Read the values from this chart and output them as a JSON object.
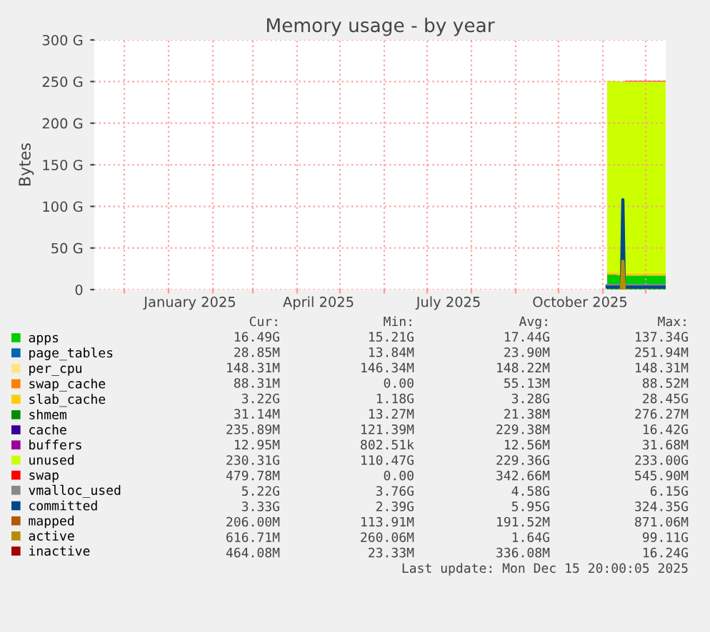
{
  "chart_data": {
    "type": "area",
    "title": "Memory usage - by year",
    "ylabel": "Bytes",
    "stacked": true,
    "grid": true,
    "legend": "bottom",
    "xlim": [
      "2024-11-10",
      "2025-12-15"
    ],
    "xticks": [
      {
        "value": "2024-12-01",
        "label": null
      },
      {
        "value": "2025-01-01",
        "label": null
      },
      {
        "value": "2025-01-16",
        "label": "January 2025"
      },
      {
        "value": "2025-02-01",
        "label": null
      },
      {
        "value": "2025-03-01",
        "label": null
      },
      {
        "value": "2025-04-01",
        "label": null
      },
      {
        "value": "2025-04-16",
        "label": "April 2025"
      },
      {
        "value": "2025-05-01",
        "label": null
      },
      {
        "value": "2025-06-01",
        "label": null
      },
      {
        "value": "2025-07-01",
        "label": null
      },
      {
        "value": "2025-07-16",
        "label": "July 2025"
      },
      {
        "value": "2025-08-01",
        "label": null
      },
      {
        "value": "2025-09-01",
        "label": null
      },
      {
        "value": "2025-10-01",
        "label": null
      },
      {
        "value": "2025-10-16",
        "label": "October 2025"
      },
      {
        "value": "2025-11-01",
        "label": null
      },
      {
        "value": "2025-12-01",
        "label": null
      }
    ],
    "ylim": [
      0,
      300
    ],
    "yticks": [
      0,
      {
        "value": 50,
        "label": "50 G"
      },
      {
        "value": 100,
        "label": "100 G"
      },
      {
        "value": 150,
        "label": "150 G"
      },
      {
        "value": 200,
        "label": "200 G"
      },
      {
        "value": 250,
        "label": "250 G"
      },
      {
        "value": 300,
        "label": "300 G"
      }
    ],
    "x": [
      "2025-11-04",
      "2025-11-10",
      "2025-11-14",
      "2025-11-15",
      "2025-11-16",
      "2025-11-17",
      "2025-11-25",
      "2025-12-05",
      "2025-12-15"
    ],
    "series": [
      {
        "name": "apps",
        "color": "#00cc00",
        "values": [
          18,
          18,
          17,
          17,
          17,
          17,
          17,
          17,
          17
        ]
      },
      {
        "name": "page_tables",
        "color": "#0066b3",
        "values": [
          null,
          null,
          null,
          null,
          null,
          null,
          null,
          null,
          null
        ]
      },
      {
        "name": "per_cpu",
        "color": "#ffe680",
        "values": [
          null,
          null,
          null,
          null,
          null,
          null,
          null,
          null,
          null
        ]
      },
      {
        "name": "swap_cache",
        "color": "#ff8000",
        "values": [
          null,
          null,
          null,
          null,
          null,
          null,
          null,
          null,
          null
        ]
      },
      {
        "name": "slab_cache",
        "color": "#ffcc00",
        "values": [
          3,
          3,
          3,
          3,
          3,
          3,
          3,
          3,
          3
        ]
      },
      {
        "name": "shmem",
        "color": "#008f00",
        "values": [
          null,
          null,
          null,
          null,
          null,
          null,
          null,
          null,
          null
        ]
      },
      {
        "name": "cache",
        "color": "#330099",
        "values": [
          null,
          null,
          null,
          null,
          null,
          null,
          null,
          null,
          null
        ]
      },
      {
        "name": "buffers",
        "color": "#990099",
        "values": [
          null,
          null,
          null,
          null,
          null,
          null,
          null,
          null,
          null
        ]
      },
      {
        "name": "unused",
        "color": "#ccff00",
        "values": [
          230,
          230,
          230,
          230,
          230,
          230,
          230,
          230,
          230
        ]
      },
      {
        "name": "swap",
        "color": "#ff0000",
        "values": [
          0,
          0,
          0,
          0,
          0,
          1,
          1,
          1,
          1
        ]
      },
      {
        "name": "vmalloc_used",
        "type": "line",
        "color": "#888888",
        "values": [
          5,
          5,
          5,
          5,
          5,
          5,
          5,
          5,
          5
        ]
      },
      {
        "name": "committed",
        "type": "line",
        "color": "#00488c",
        "values": [
          3,
          3,
          3,
          108,
          3,
          3,
          3,
          3,
          3
        ]
      },
      {
        "name": "mapped",
        "type": "line",
        "color": "#b35a00",
        "values": [
          null,
          null,
          null,
          null,
          null,
          null,
          null,
          null,
          null
        ]
      },
      {
        "name": "active",
        "type": "line",
        "color": "#b38f00",
        "values": [
          null,
          null,
          1,
          34,
          1,
          null,
          null,
          null,
          null
        ]
      },
      {
        "name": "inactive",
        "type": "line",
        "color": "#a30000",
        "values": [
          null,
          null,
          null,
          null,
          null,
          null,
          null,
          null,
          null
        ]
      }
    ],
    "annotations": [
      "Cur:",
      "Min:",
      "Avg:",
      "Max:",
      "16.49G",
      "15.21G",
      "17.44G",
      "137.34G",
      "28.85M",
      "13.84M",
      "23.90M",
      "251.94M",
      "148.31M",
      "146.34M",
      "148.22M",
      "148.31M",
      "88.31M",
      "0.00",
      "55.13M",
      "88.52M",
      "3.22G",
      "1.18G",
      "3.28G",
      "28.45G",
      "31.14M",
      "13.27M",
      "21.38M",
      "276.27M",
      "235.89M",
      "121.39M",
      "229.38M",
      "16.42G",
      "12.95M",
      "802.51k",
      "12.56M",
      "31.68M",
      "230.31G",
      "110.47G",
      "229.36G",
      "233.00G",
      "479.78M",
      "0.00",
      "342.66M",
      "545.90M",
      "5.22G",
      "3.76G",
      "4.58G",
      "6.15G",
      "3.33G",
      "2.39G",
      "5.95G",
      "324.35G",
      "206.00M",
      "113.91M",
      "191.52M",
      "871.06M",
      "616.71M",
      "260.06M",
      "1.64G",
      "99.11G",
      "464.08M",
      "23.33M",
      "336.08M",
      "16.24G",
      "Last update: Mon Dec 15 20:00:05 2025"
    ]
  }
}
